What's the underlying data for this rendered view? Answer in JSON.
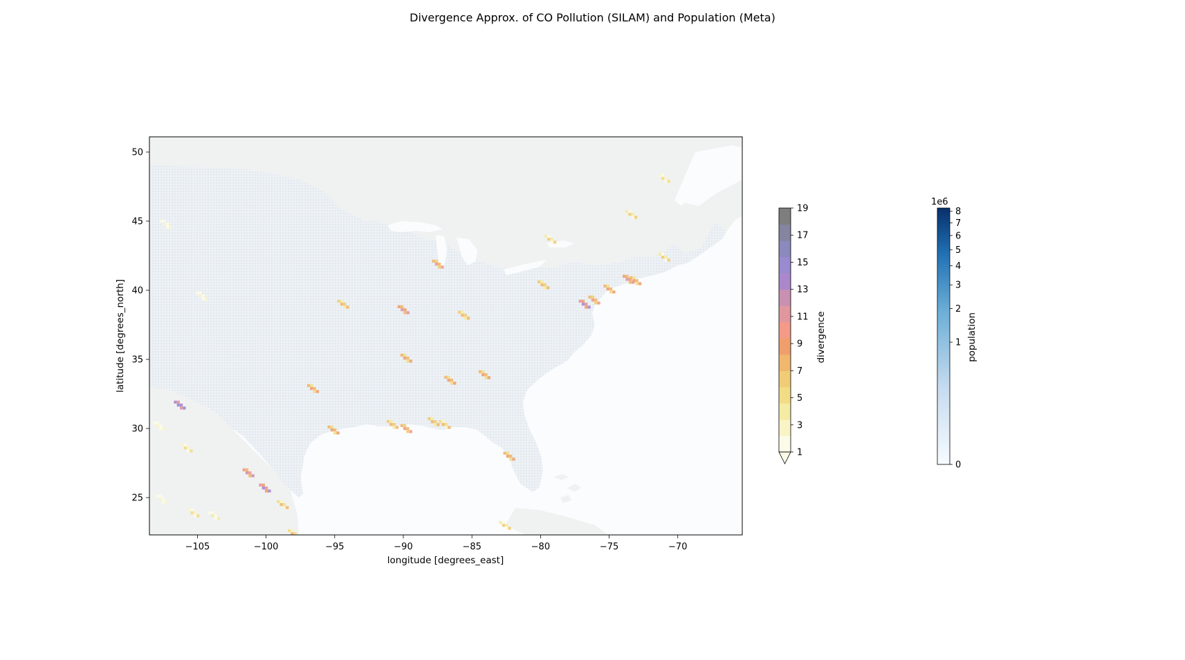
{
  "title": "Divergence Approx. of CO Pollution (SILAM) and Population (Meta)",
  "map": {
    "xlabel": "longitude [degrees_east]",
    "ylabel": "latitude [degrees_north]",
    "xlim": [
      -108.5,
      -65.3
    ],
    "ylim": [
      22.3,
      51.1
    ],
    "xticks": [
      "−105",
      "−100",
      "−95",
      "−90",
      "−85",
      "−80",
      "−75",
      "−70"
    ],
    "xtick_values": [
      -105,
      -100,
      -95,
      -90,
      -85,
      -80,
      -75,
      -70
    ],
    "yticks": [
      "25",
      "30",
      "35",
      "40",
      "45",
      "50"
    ],
    "ytick_values": [
      25,
      30,
      35,
      40,
      45,
      50
    ],
    "land_color": "#f0f2f1",
    "water_color": "#fbfcfe",
    "grid_color": "#c9d7e6"
  },
  "divergence_colorbar": {
    "label": "divergence",
    "tick_labels": [
      "1",
      "3",
      "5",
      "7",
      "9",
      "11",
      "13",
      "15",
      "17",
      "19"
    ],
    "colors": [
      "#fbfbe8",
      "#f8f4c6",
      "#f4eba4",
      "#f2dd86",
      "#f1cc76",
      "#f0b76e",
      "#ef9f6c",
      "#f49a88",
      "#e0979e",
      "#c990b2",
      "#ab88cc",
      "#9a8acf",
      "#8c89bf",
      "#8585a1",
      "#7e7e7e"
    ]
  },
  "population_colorbar": {
    "label": "population",
    "exponent_label": "1e6",
    "tick_labels": [
      "0",
      "1",
      "2",
      "3",
      "4",
      "5",
      "6",
      "7",
      "8"
    ],
    "tick_values": [
      0,
      1,
      2,
      3,
      4,
      5,
      6,
      7,
      8
    ],
    "colors": [
      "#f7fbff",
      "#c6dbef",
      "#6baed6",
      "#2171b5",
      "#08306b"
    ]
  },
  "hotspots": [
    {
      "lon": -106.5,
      "lat": 31.8,
      "level": 15
    },
    {
      "lon": -96.8,
      "lat": 33.0,
      "level": 9
    },
    {
      "lon": -95.3,
      "lat": 30.0,
      "level": 9
    },
    {
      "lon": -94.6,
      "lat": 39.1,
      "level": 8
    },
    {
      "lon": -90.2,
      "lat": 38.7,
      "level": 11
    },
    {
      "lon": -90.0,
      "lat": 35.2,
      "level": 9
    },
    {
      "lon": -87.7,
      "lat": 42.0,
      "level": 10
    },
    {
      "lon": -86.8,
      "lat": 33.6,
      "level": 9
    },
    {
      "lon": -85.8,
      "lat": 38.3,
      "level": 8
    },
    {
      "lon": -84.3,
      "lat": 34.0,
      "level": 9
    },
    {
      "lon": -82.5,
      "lat": 28.1,
      "level": 9
    },
    {
      "lon": -80.0,
      "lat": 40.5,
      "level": 8
    },
    {
      "lon": -79.5,
      "lat": 43.8,
      "level": 6
    },
    {
      "lon": -77.0,
      "lat": 39.1,
      "level": 13
    },
    {
      "lon": -76.3,
      "lat": 39.4,
      "level": 10
    },
    {
      "lon": -75.2,
      "lat": 40.2,
      "level": 9
    },
    {
      "lon": -73.8,
      "lat": 40.9,
      "level": 11
    },
    {
      "lon": -73.3,
      "lat": 40.8,
      "level": 9
    },
    {
      "lon": -71.2,
      "lat": 42.5,
      "level": 6
    },
    {
      "lon": -71.2,
      "lat": 48.2,
      "level": 5
    },
    {
      "lon": -73.6,
      "lat": 45.6,
      "level": 6
    },
    {
      "lon": -91.0,
      "lat": 30.4,
      "level": 8
    },
    {
      "lon": -90.0,
      "lat": 30.1,
      "level": 10
    },
    {
      "lon": -88.0,
      "lat": 30.6,
      "level": 8
    },
    {
      "lon": -87.2,
      "lat": 30.4,
      "level": 7
    },
    {
      "lon": -101.5,
      "lat": 26.9,
      "level": 12
    },
    {
      "lon": -100.3,
      "lat": 25.8,
      "level": 13
    },
    {
      "lon": -99.0,
      "lat": 24.6,
      "level": 7
    },
    {
      "lon": -98.2,
      "lat": 22.5,
      "level": 7
    },
    {
      "lon": -106.0,
      "lat": 28.7,
      "level": 5
    },
    {
      "lon": -105.5,
      "lat": 24.0,
      "level": 5
    },
    {
      "lon": -82.8,
      "lat": 23.1,
      "level": 6
    },
    {
      "lon": -107.8,
      "lat": 25.0,
      "level": 3
    },
    {
      "lon": -107.5,
      "lat": 44.9,
      "level": 3
    },
    {
      "lon": -104.9,
      "lat": 39.7,
      "level": 3
    },
    {
      "lon": -104.0,
      "lat": 23.8,
      "level": 4
    },
    {
      "lon": -108.0,
      "lat": 30.3,
      "level": 3
    }
  ]
}
